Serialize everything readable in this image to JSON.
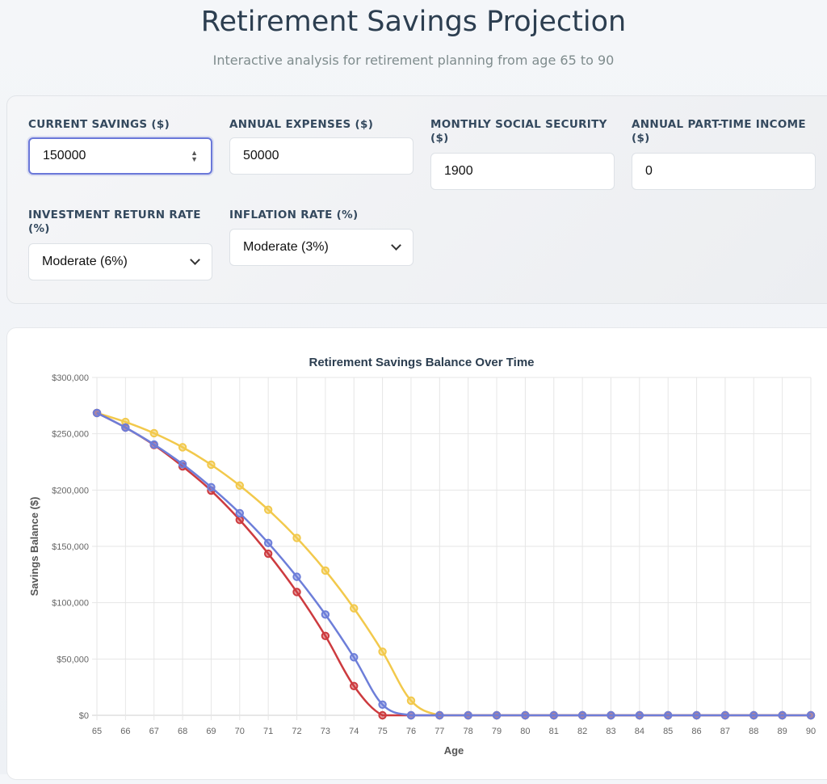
{
  "header": {
    "title": "Retirement Savings Projection",
    "subtitle": "Interactive analysis for retirement planning from age 65 to 90"
  },
  "form": {
    "current_savings": {
      "label": "CURRENT SAVINGS ($)",
      "value": "150000"
    },
    "annual_expenses": {
      "label": "ANNUAL EXPENSES ($)",
      "value": "50000"
    },
    "social_security": {
      "label": "MONTHLY SOCIAL SECURITY ($)",
      "value": "1900"
    },
    "part_time": {
      "label": "ANNUAL PART-TIME INCOME ($)",
      "value": "0"
    },
    "return_rate": {
      "label": "INVESTMENT RETURN RATE (%)",
      "value": "Moderate (6%)"
    },
    "inflation_rate": {
      "label": "INFLATION RATE (%)",
      "value": "Moderate (3%)"
    }
  },
  "chart_data": {
    "type": "line",
    "title": "Retirement Savings Balance Over Time",
    "xlabel": "Age",
    "ylabel": "Savings Balance ($)",
    "ylim": [
      0,
      300000
    ],
    "yticks": [
      0,
      50000,
      100000,
      150000,
      200000,
      250000,
      300000
    ],
    "ytick_labels": [
      "$0",
      "$50,000",
      "$100,000",
      "$150,000",
      "$200,000",
      "$250,000",
      "$300,000"
    ],
    "x": [
      65,
      66,
      67,
      68,
      69,
      70,
      71,
      72,
      73,
      74,
      75,
      76,
      77,
      78,
      79,
      80,
      81,
      82,
      83,
      84,
      85,
      86,
      87,
      88,
      89,
      90
    ],
    "grid": true,
    "series": [
      {
        "color": "#f2c94c",
        "values": [
          268500,
          260500,
          250500,
          238000,
          222500,
          204000,
          182500,
          157500,
          128500,
          95000,
          56500,
          13000,
          0,
          0,
          0,
          0,
          0,
          0,
          0,
          0,
          0,
          0,
          0,
          0,
          0,
          0
        ]
      },
      {
        "color": "#cd3b3f",
        "values": [
          268500,
          255500,
          240000,
          221000,
          199500,
          173500,
          143500,
          109500,
          70500,
          26000,
          0,
          0,
          0,
          0,
          0,
          0,
          0,
          0,
          0,
          0,
          0,
          0,
          0,
          0,
          0,
          0
        ]
      },
      {
        "color": "#6d7ed9",
        "values": [
          268500,
          255500,
          240500,
          223000,
          202500,
          179500,
          153000,
          123000,
          89500,
          51500,
          9500,
          0,
          0,
          0,
          0,
          0,
          0,
          0,
          0,
          0,
          0,
          0,
          0,
          0,
          0,
          0
        ]
      }
    ]
  }
}
